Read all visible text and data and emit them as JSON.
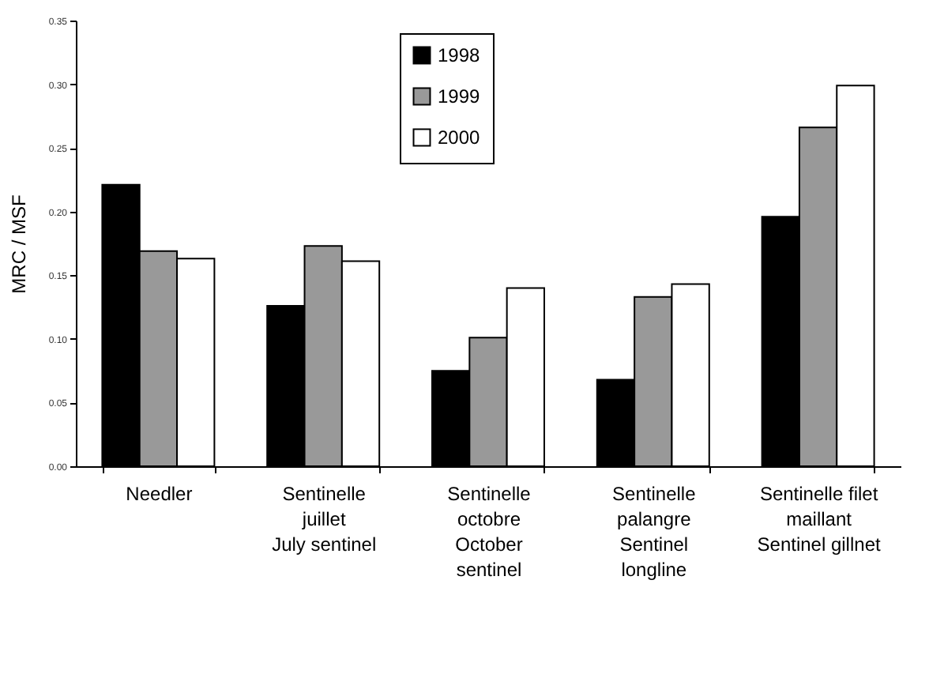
{
  "chart_data": {
    "type": "bar",
    "ylabel": "MRC / MSF",
    "categories": [
      "Needler",
      "Sentinelle\njuillet\nJuly sentinel",
      "Sentinelle\noctobre\nOctober\nsentinel",
      "Sentinelle\npalangre\nSentinel\nlongline",
      "Sentinelle filet\nmaillant\nSentinel gillnet"
    ],
    "series": [
      {
        "name": "1998",
        "color": "#000000",
        "values": [
          0.221,
          0.126,
          0.075,
          0.068,
          0.196
        ]
      },
      {
        "name": "1999",
        "color": "#999999",
        "values": [
          0.169,
          0.173,
          0.101,
          0.133,
          0.266
        ]
      },
      {
        "name": "2000",
        "color": "#ffffff",
        "values": [
          0.163,
          0.161,
          0.14,
          0.143,
          0.299
        ]
      }
    ],
    "ylim": [
      0,
      0.35
    ],
    "yticks": [
      {
        "value": 0,
        "label": "0.00"
      },
      {
        "value": 0.05,
        "label": "0.05"
      },
      {
        "value": 0.1,
        "label": "0.10"
      },
      {
        "value": 0.15,
        "label": "0.15"
      },
      {
        "value": 0.2,
        "label": "0.20"
      },
      {
        "value": 0.25,
        "label": "0.25"
      },
      {
        "value": 0.3,
        "label": "0.30"
      },
      {
        "value": 0.35,
        "label": "0.35"
      }
    ],
    "grid": false,
    "legend": "top"
  }
}
